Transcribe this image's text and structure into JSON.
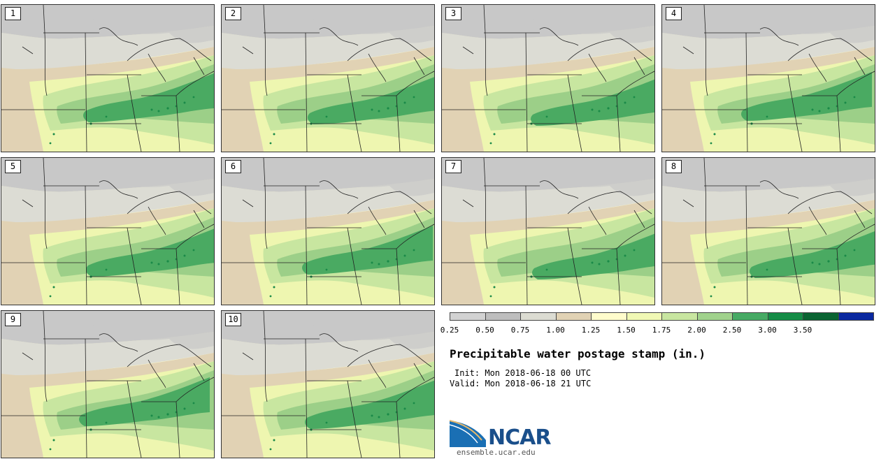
{
  "map": {
    "title": "Precipitable water postage stamp (in.)",
    "init": "Init: Mon 2018-06-18 00 UTC",
    "valid": "Valid: Mon 2018-06-18 21 UTC",
    "members": [
      "1",
      "2",
      "3",
      "4",
      "5",
      "6",
      "7",
      "8",
      "9",
      "10"
    ],
    "legend": {
      "ticks": [
        "0.25",
        "0.50",
        "0.75",
        "1.00",
        "1.25",
        "1.50",
        "1.75",
        "2.00",
        "2.50",
        "3.00",
        "3.50"
      ],
      "colors": [
        "#d2d2d2",
        "#bebebe",
        "#dcdcd2",
        "#e1d2b4",
        "#fffccc",
        "#f0f8b4",
        "#c8e6a0",
        "#a0d28c",
        "#46aa64",
        "#148c46",
        "#0a6432",
        "#0a28a0"
      ]
    },
    "colors": {
      "gray": "#c8c8c8",
      "light_gray": "#dcdcd4",
      "tan": "#e1d2b4",
      "cream": "#fffccc",
      "pale_green": "#eef6b0",
      "light_green": "#c8e6a0",
      "green": "#9ccf88",
      "med_green": "#4aaa62",
      "dark_green": "#1a8a48"
    },
    "logo": {
      "text": "NCAR",
      "url": "ensemble.ucar.edu"
    }
  }
}
